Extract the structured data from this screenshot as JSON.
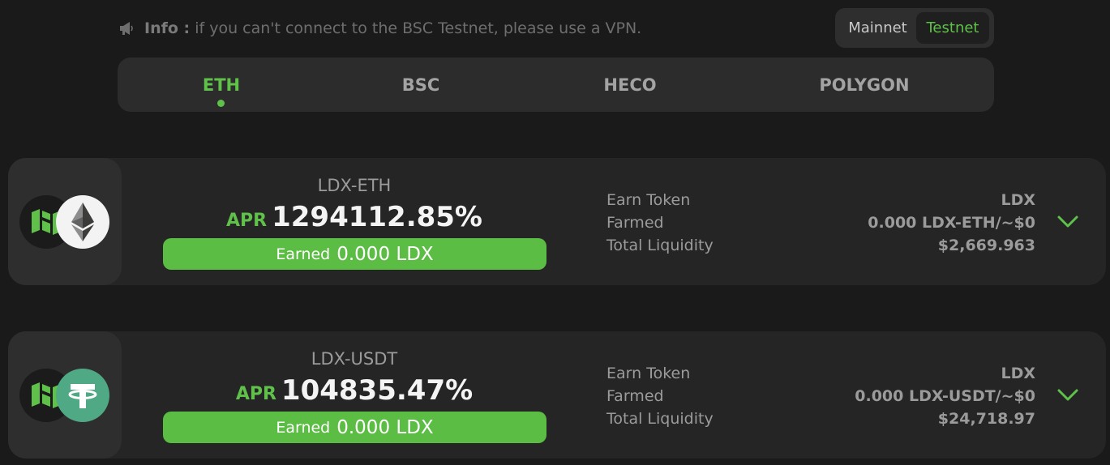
{
  "info": {
    "label": "Info :",
    "message": "if you can't connect to the BSC Testnet, please use a VPN."
  },
  "network": {
    "mainnet_label": "Mainnet",
    "testnet_label": "Testnet",
    "selected": "Testnet"
  },
  "chains": {
    "tabs": [
      {
        "label": "ETH"
      },
      {
        "label": "BSC"
      },
      {
        "label": "HECO"
      },
      {
        "label": "POLYGON"
      }
    ],
    "active": "ETH"
  },
  "farms": [
    {
      "pair": "LDX-ETH",
      "apr_label": "APR",
      "apr": "1294112.85%",
      "earned_label": "Earned",
      "earned_value": "0.000 LDX",
      "labels": {
        "earn_token": "Earn Token",
        "farmed": "Farmed",
        "total_liquidity": "Total Liquidity"
      },
      "earn_token": "LDX",
      "farmed": "0.000 LDX-ETH/~$0",
      "total_liquidity": "$2,669.963",
      "token_a_icon": "ldx-logo-icon",
      "token_b_icon": "ethereum-logo-icon"
    },
    {
      "pair": "LDX-USDT",
      "apr_label": "APR",
      "apr": "104835.47%",
      "earned_label": "Earned",
      "earned_value": "0.000 LDX",
      "labels": {
        "earn_token": "Earn Token",
        "farmed": "Farmed",
        "total_liquidity": "Total Liquidity"
      },
      "earn_token": "LDX",
      "farmed": "0.000 LDX-USDT/~$0",
      "total_liquidity": "$24,718.97",
      "token_a_icon": "ldx-logo-icon",
      "token_b_icon": "tether-logo-icon"
    }
  ],
  "colors": {
    "accent": "#5fc149",
    "background": "#1a1a1a",
    "card": "#252525",
    "earned_bar": "#5cbd44"
  }
}
